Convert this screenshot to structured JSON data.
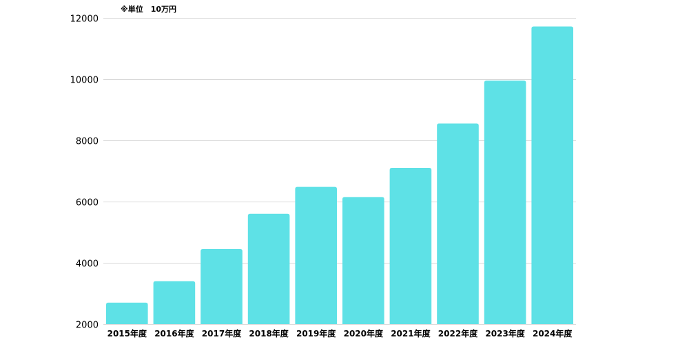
{
  "chart_data": {
    "type": "bar",
    "unit_note": "※単位　10万円",
    "categories": [
      "2015年度",
      "2016年度",
      "2017年度",
      "2018年度",
      "2019年度",
      "2020年度",
      "2021年度",
      "2022年度",
      "2023年度",
      "2024年度"
    ],
    "series": [
      {
        "values": [
          2700,
          3400,
          4450,
          5600,
          6480,
          6150,
          7100,
          8550,
          9950,
          11720
        ]
      }
    ],
    "yticks": [
      2000,
      4000,
      6000,
      8000,
      10000,
      12000
    ],
    "ylim": [
      2000,
      12000
    ],
    "grid": true,
    "legend": "none",
    "colors": {
      "bar": "#5ee1e6",
      "grid": "#d9d9d9",
      "text": "#000000"
    }
  }
}
